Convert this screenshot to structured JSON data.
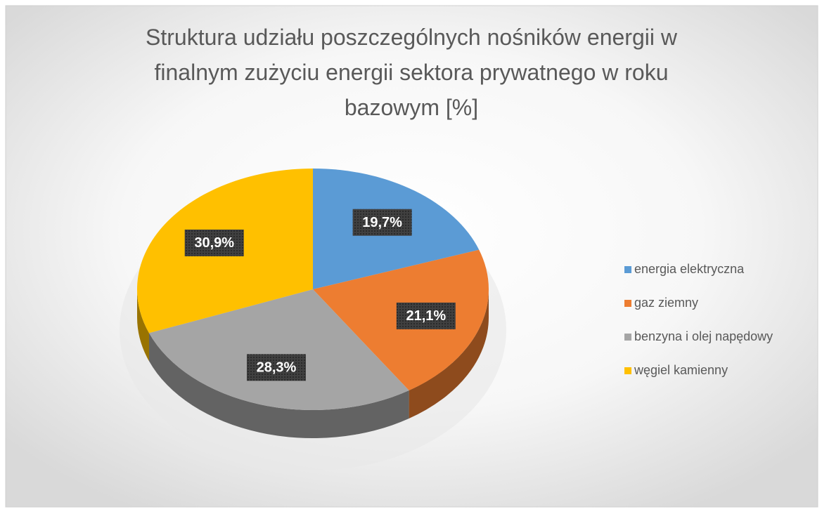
{
  "chart_data": {
    "type": "pie",
    "title": "Struktura udziału poszczególnych nośników energii w finalnym zużyciu energii sektora prywatnego w roku bazowym [%]",
    "categories": [
      "energia elektryczna",
      "gaz ziemny",
      "benzyna i olej napędowy",
      "węgiel kamienny"
    ],
    "values": [
      19.7,
      21.1,
      28.3,
      30.9
    ],
    "value_labels": [
      "19,7%",
      "21,1%",
      "28,3%",
      "30,9%"
    ],
    "colors": [
      "#5b9bd5",
      "#ed7d31",
      "#a5a5a5",
      "#ffc000"
    ],
    "legend": "right"
  }
}
